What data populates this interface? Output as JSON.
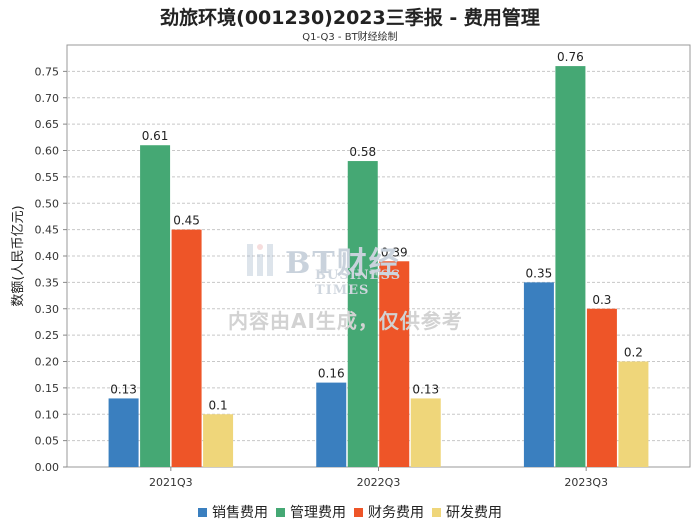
{
  "chart_data": {
    "type": "bar",
    "title": "劲旅环境(001230)2023三季报 - 费用管理",
    "subtitle": "Q1-Q3 - BT财经绘制",
    "xlabel": "",
    "ylabel": "数额(人民币亿元)",
    "ylim": [
      0,
      0.8
    ],
    "yticks": [
      "0.00",
      "0.05",
      "0.10",
      "0.15",
      "0.20",
      "0.25",
      "0.30",
      "0.35",
      "0.40",
      "0.45",
      "0.50",
      "0.55",
      "0.60",
      "0.65",
      "0.70",
      "0.75"
    ],
    "categories": [
      "2021Q3",
      "2022Q3",
      "2023Q3"
    ],
    "series": [
      {
        "name": "销售费用",
        "color": "#3a7fbf",
        "values": [
          0.13,
          0.16,
          0.35
        ],
        "labels": [
          "0.13",
          "0.16",
          "0.35"
        ]
      },
      {
        "name": "管理费用",
        "color": "#45a874",
        "values": [
          0.61,
          0.58,
          0.76
        ],
        "labels": [
          "0.61",
          "0.58",
          "0.76"
        ]
      },
      {
        "name": "财务费用",
        "color": "#ee5528",
        "values": [
          0.45,
          0.39,
          0.3
        ],
        "labels": [
          "0.45",
          "0.39",
          "0.3"
        ]
      },
      {
        "name": "研发费用",
        "color": "#efd67a",
        "values": [
          0.1,
          0.13,
          0.2
        ],
        "labels": [
          "0.1",
          "0.13",
          "0.2"
        ]
      }
    ],
    "grid": true,
    "legend_position": "bottom"
  },
  "watermark": {
    "logo_text": "BT财经",
    "logo_subtext": "BUSINESS TIMES",
    "notice": "内容由AI生成，仅供参考"
  }
}
